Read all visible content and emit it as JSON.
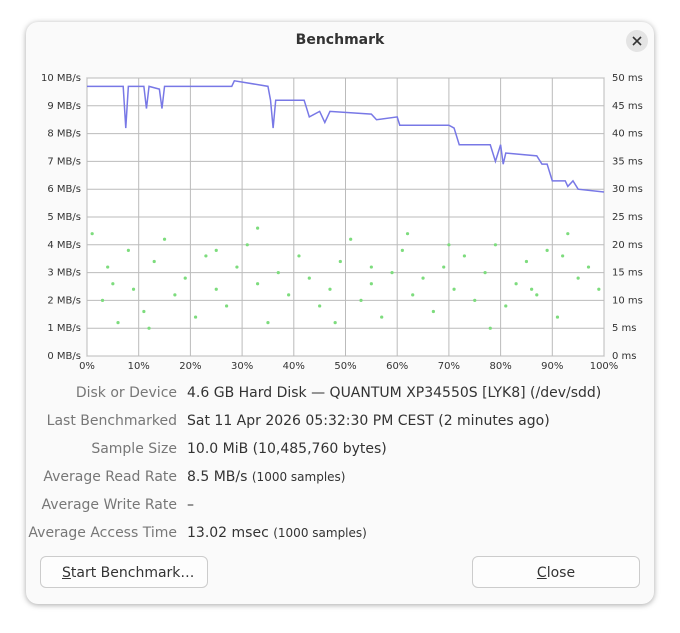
{
  "window": {
    "title": "Benchmark"
  },
  "chart_data": {
    "type": "line",
    "xlim": [
      0,
      100
    ],
    "ylim": [
      0,
      10
    ],
    "y2lim": [
      0,
      50
    ],
    "xticks": [
      {
        "value": 0,
        "label": "0%"
      },
      {
        "value": 10,
        "label": "10%"
      },
      {
        "value": 20,
        "label": "20%"
      },
      {
        "value": 30,
        "label": "30%"
      },
      {
        "value": 40,
        "label": "40%"
      },
      {
        "value": 50,
        "label": "50%"
      },
      {
        "value": 60,
        "label": "60%"
      },
      {
        "value": 70,
        "label": "70%"
      },
      {
        "value": 80,
        "label": "80%"
      },
      {
        "value": 90,
        "label": "90%"
      },
      {
        "value": 100,
        "label": "100%"
      }
    ],
    "yticks": [
      {
        "value": 0,
        "label": "0 MB/s"
      },
      {
        "value": 1,
        "label": "1 MB/s"
      },
      {
        "value": 2,
        "label": "2 MB/s"
      },
      {
        "value": 3,
        "label": "3 MB/s"
      },
      {
        "value": 4,
        "label": "4 MB/s"
      },
      {
        "value": 5,
        "label": "5 MB/s"
      },
      {
        "value": 6,
        "label": "6 MB/s"
      },
      {
        "value": 7,
        "label": "7 MB/s"
      },
      {
        "value": 8,
        "label": "8 MB/s"
      },
      {
        "value": 9,
        "label": "9 MB/s"
      },
      {
        "value": 10,
        "label": "10 MB/s"
      }
    ],
    "y2ticks": [
      {
        "value": 0,
        "label": "0 ms"
      },
      {
        "value": 5,
        "label": "5 ms"
      },
      {
        "value": 10,
        "label": "10 ms"
      },
      {
        "value": 15,
        "label": "15 ms"
      },
      {
        "value": 20,
        "label": "20 ms"
      },
      {
        "value": 25,
        "label": "25 ms"
      },
      {
        "value": 30,
        "label": "30 ms"
      },
      {
        "value": 35,
        "label": "35 ms"
      },
      {
        "value": 40,
        "label": "40 ms"
      },
      {
        "value": 45,
        "label": "45 ms"
      },
      {
        "value": 50,
        "label": "50 ms"
      }
    ],
    "grid": true,
    "series": [
      {
        "type": "line",
        "color": "#7878e6",
        "x": [
          0,
          7,
          7.5,
          8,
          11,
          11.5,
          12,
          14,
          14.5,
          15,
          28,
          28.5,
          35,
          35.5,
          36,
          36.5,
          42,
          42.5,
          43,
          45,
          46,
          47,
          55,
          56,
          60,
          60.5,
          70,
          71,
          72,
          78,
          79,
          80,
          80.5,
          81,
          87,
          88,
          89,
          90,
          92.5,
          93,
          94,
          95,
          100
        ],
        "values": [
          9.7,
          9.7,
          8.2,
          9.7,
          9.7,
          8.9,
          9.7,
          9.6,
          8.9,
          9.7,
          9.7,
          9.9,
          9.7,
          9.2,
          8.2,
          9.2,
          9.2,
          8.9,
          8.6,
          8.8,
          8.4,
          8.8,
          8.7,
          8.5,
          8.6,
          8.3,
          8.3,
          8.2,
          7.6,
          7.6,
          7.0,
          7.6,
          6.9,
          7.3,
          7.2,
          6.9,
          6.9,
          6.3,
          6.3,
          6.1,
          6.3,
          6.0,
          5.9
        ]
      },
      {
        "type": "scatter",
        "axis": "y2",
        "color": "#7ddc7d",
        "x": [
          1,
          3,
          4,
          6,
          8,
          9,
          11,
          13,
          15,
          17,
          19,
          21,
          23,
          25,
          27,
          29,
          31,
          33,
          35,
          37,
          39,
          41,
          43,
          45,
          47,
          49,
          51,
          53,
          55,
          57,
          59,
          61,
          63,
          65,
          67,
          69,
          71,
          73,
          75,
          77,
          79,
          81,
          83,
          85,
          87,
          89,
          91,
          93,
          95,
          97,
          99,
          12,
          33,
          48,
          62,
          78,
          92,
          5,
          25,
          55,
          70,
          86
        ],
        "values": [
          22,
          10,
          16,
          6,
          19,
          12,
          8,
          17,
          21,
          11,
          14,
          7,
          18,
          12,
          9,
          16,
          20,
          13,
          6,
          15,
          11,
          18,
          14,
          9,
          12,
          17,
          21,
          10,
          13,
          7,
          15,
          19,
          11,
          14,
          8,
          16,
          12,
          18,
          10,
          15,
          20,
          9,
          13,
          17,
          11,
          19,
          7,
          22,
          14,
          16,
          12,
          5,
          23,
          6,
          22,
          5,
          18,
          13,
          19,
          16,
          20,
          12
        ]
      }
    ]
  },
  "info": {
    "rows": [
      {
        "label": "Disk or Device",
        "value": "4.6 GB Hard Disk — QUANTUM XP34550S [LYK8] (/dev/sdd)"
      },
      {
        "label": "Last Benchmarked",
        "value": "Sat 11 Apr 2026 05:32:30 PM CEST (2 minutes ago)"
      },
      {
        "label": "Sample Size",
        "value": "10.0 MiB (10,485,760 bytes)"
      },
      {
        "label": "Average Read Rate",
        "value": "8.5 MB/s",
        "note": "(1000 samples)"
      },
      {
        "label": "Average Write Rate",
        "value": "–"
      },
      {
        "label": "Average Access Time",
        "value": "13.02 msec",
        "note": "(1000 samples)"
      }
    ]
  },
  "buttons": {
    "start": "Start Benchmark…",
    "close": "Close"
  }
}
